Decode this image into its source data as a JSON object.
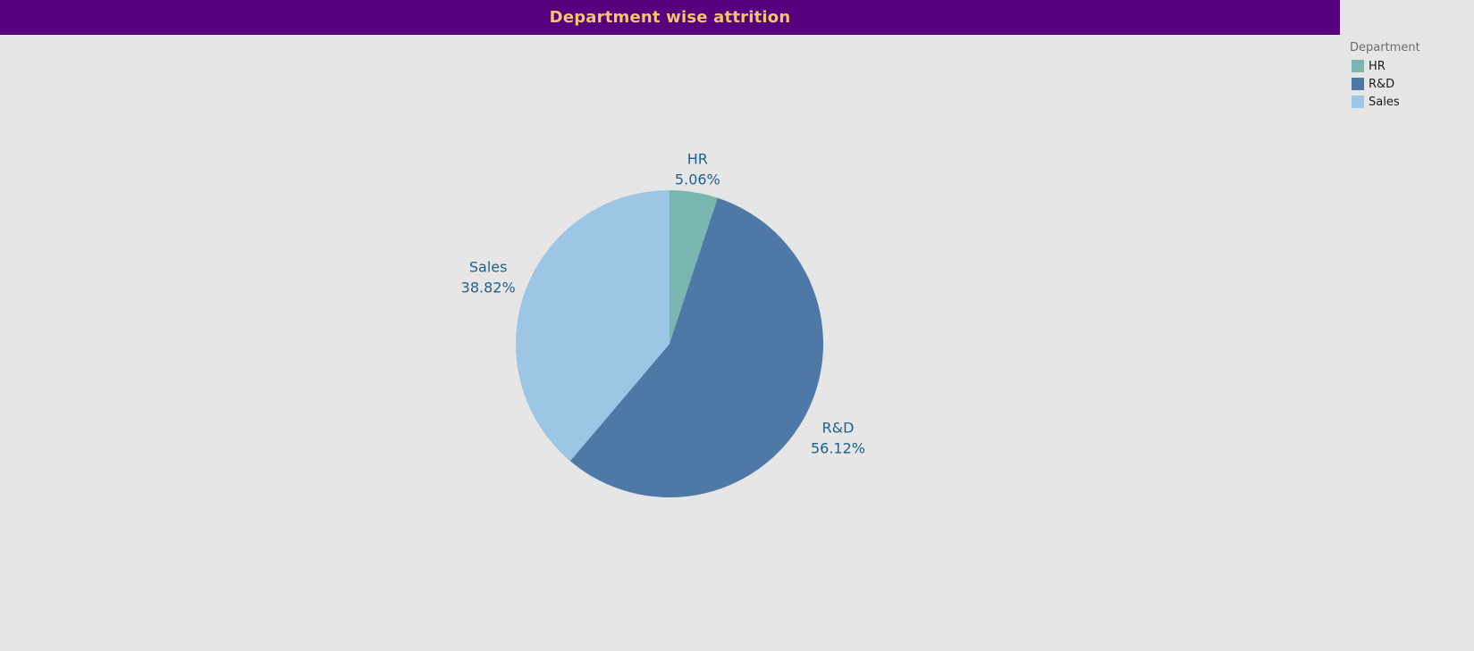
{
  "header": {
    "title": "Department wise attrition"
  },
  "colors": {
    "header_bg": "#57007e",
    "title_text": "#f5c46b",
    "label_text": "#1f5f8b",
    "legend_title": "#6b6b6b",
    "background": "#e6e6e6"
  },
  "legend": {
    "title": "Department",
    "items": [
      {
        "label": "HR",
        "color": "#79b6b1"
      },
      {
        "label": "R&D",
        "color": "#4e79a7"
      },
      {
        "label": "Sales",
        "color": "#9dc6e5"
      }
    ]
  },
  "chart_data": {
    "type": "pie",
    "title": "Department wise attrition",
    "legend_title": "Department",
    "legend_position": "top-right",
    "categories": [
      "HR",
      "R&D",
      "Sales"
    ],
    "values": [
      5.06,
      56.12,
      38.82
    ],
    "value_labels": [
      "5.06%",
      "56.12%",
      "38.82%"
    ],
    "colors": [
      "#79b6b1",
      "#4e79a7",
      "#9dc6e5"
    ],
    "start_angle": "12 o'clock",
    "direction": "clockwise"
  }
}
